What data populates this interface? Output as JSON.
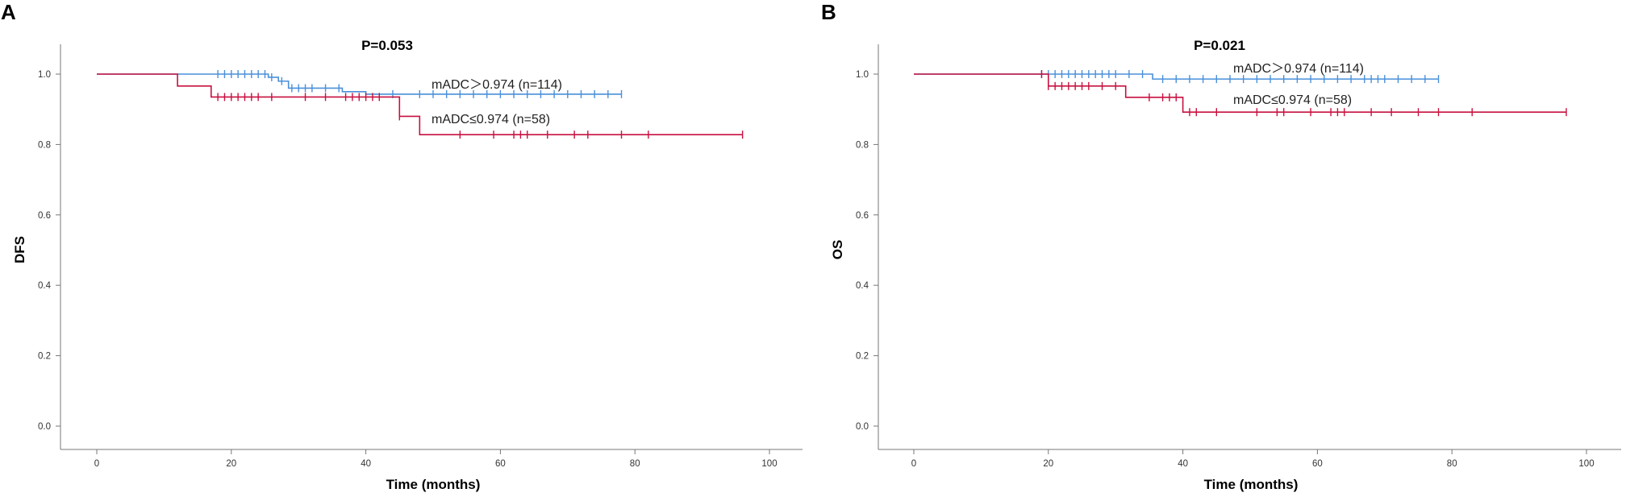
{
  "colors": {
    "high": "#4a90d9",
    "low": "#c8103f"
  },
  "chart_data": [
    {
      "type": "line",
      "panel": "A",
      "title": "P=0.053",
      "xlabel": "Time (months)",
      "ylabel": "DFS",
      "xlim": [
        0,
        100
      ],
      "ylim": [
        0,
        1
      ],
      "xticks": [
        "0",
        "20",
        "40",
        "60",
        "80",
        "100"
      ],
      "yticks": [
        "0.0",
        "0.2",
        "0.4",
        "0.6",
        "0.8",
        "1.0"
      ],
      "series": [
        {
          "name": "mADC＞0.974 (n=114)",
          "color": "#4a90d9",
          "steps": [
            [
              0,
              1.0
            ],
            [
              25.5,
              0.991
            ],
            [
              27,
              0.98
            ],
            [
              28.5,
              0.96
            ],
            [
              36.5,
              0.95
            ],
            [
              40,
              0.943
            ],
            [
              78,
              0.943
            ]
          ],
          "censors": [
            [
              18,
              1.0
            ],
            [
              19,
              1.0
            ],
            [
              20,
              1.0
            ],
            [
              21,
              1.0
            ],
            [
              22,
              1.0
            ],
            [
              23,
              1.0
            ],
            [
              24,
              1.0
            ],
            [
              25,
              1.0
            ],
            [
              26,
              0.991
            ],
            [
              27.5,
              0.98
            ],
            [
              29,
              0.96
            ],
            [
              30,
              0.96
            ],
            [
              31,
              0.96
            ],
            [
              32,
              0.96
            ],
            [
              34,
              0.96
            ],
            [
              36,
              0.96
            ],
            [
              44,
              0.943
            ],
            [
              48,
              0.943
            ],
            [
              50,
              0.943
            ],
            [
              52,
              0.943
            ],
            [
              54,
              0.943
            ],
            [
              56,
              0.943
            ],
            [
              58,
              0.943
            ],
            [
              60,
              0.943
            ],
            [
              62,
              0.943
            ],
            [
              64,
              0.943
            ],
            [
              66,
              0.943
            ],
            [
              68,
              0.943
            ],
            [
              70,
              0.943
            ],
            [
              72,
              0.943
            ],
            [
              74,
              0.943
            ],
            [
              76,
              0.943
            ],
            [
              78,
              0.943
            ]
          ]
        },
        {
          "name": "mADC≤0.974 (n=58)",
          "color": "#c8103f",
          "steps": [
            [
              0,
              1.0
            ],
            [
              12,
              0.966
            ],
            [
              17,
              0.935
            ],
            [
              45,
              0.88
            ],
            [
              48,
              0.828
            ],
            [
              96,
              0.828
            ]
          ],
          "censors": [
            [
              18,
              0.935
            ],
            [
              19,
              0.935
            ],
            [
              20,
              0.935
            ],
            [
              21,
              0.935
            ],
            [
              22,
              0.935
            ],
            [
              23,
              0.935
            ],
            [
              24,
              0.935
            ],
            [
              26,
              0.935
            ],
            [
              31,
              0.935
            ],
            [
              34,
              0.935
            ],
            [
              37,
              0.935
            ],
            [
              38,
              0.935
            ],
            [
              39,
              0.935
            ],
            [
              40,
              0.935
            ],
            [
              41,
              0.935
            ],
            [
              42,
              0.935
            ],
            [
              45,
              0.88
            ],
            [
              54,
              0.828
            ],
            [
              59,
              0.828
            ],
            [
              62,
              0.828
            ],
            [
              63,
              0.828
            ],
            [
              64,
              0.828
            ],
            [
              67,
              0.828
            ],
            [
              71,
              0.828
            ],
            [
              73,
              0.828
            ],
            [
              78,
              0.828
            ],
            [
              82,
              0.828
            ],
            [
              96,
              0.828
            ]
          ]
        }
      ]
    },
    {
      "type": "line",
      "panel": "B",
      "title": "P=0.021",
      "xlabel": "Time (months)",
      "ylabel": "OS",
      "xlim": [
        0,
        100
      ],
      "ylim": [
        0,
        1
      ],
      "xticks": [
        "0",
        "20",
        "40",
        "60",
        "80",
        "100"
      ],
      "yticks": [
        "0.0",
        "0.2",
        "0.4",
        "0.6",
        "0.8",
        "1.0"
      ],
      "series": [
        {
          "name": "mADC＞0.974 (n=114)",
          "color": "#4a90d9",
          "steps": [
            [
              0,
              1.0
            ],
            [
              35.5,
              0.986
            ],
            [
              78,
              0.986
            ]
          ],
          "censors": [
            [
              19,
              1.0
            ],
            [
              20,
              1.0
            ],
            [
              21,
              1.0
            ],
            [
              22,
              1.0
            ],
            [
              23,
              1.0
            ],
            [
              24,
              1.0
            ],
            [
              25,
              1.0
            ],
            [
              26,
              1.0
            ],
            [
              27,
              1.0
            ],
            [
              28,
              1.0
            ],
            [
              29,
              1.0
            ],
            [
              30,
              1.0
            ],
            [
              32,
              1.0
            ],
            [
              34,
              1.0
            ],
            [
              37,
              0.986
            ],
            [
              39,
              0.986
            ],
            [
              41,
              0.986
            ],
            [
              43,
              0.986
            ],
            [
              45,
              0.986
            ],
            [
              47,
              0.986
            ],
            [
              49,
              0.986
            ],
            [
              51,
              0.986
            ],
            [
              53,
              0.986
            ],
            [
              55,
              0.986
            ],
            [
              57,
              0.986
            ],
            [
              59,
              0.986
            ],
            [
              61,
              0.986
            ],
            [
              63,
              0.986
            ],
            [
              65,
              0.986
            ],
            [
              67,
              0.986
            ],
            [
              68,
              0.986
            ],
            [
              69,
              0.986
            ],
            [
              70,
              0.986
            ],
            [
              72,
              0.986
            ],
            [
              74,
              0.986
            ],
            [
              76,
              0.986
            ],
            [
              78,
              0.986
            ]
          ]
        },
        {
          "name": "mADC≤0.974 (n=58)",
          "color": "#c8103f",
          "steps": [
            [
              0,
              1.0
            ],
            [
              20,
              0.966
            ],
            [
              31.5,
              0.934
            ],
            [
              40,
              0.892
            ],
            [
              97,
              0.892
            ]
          ],
          "censors": [
            [
              19,
              1.0
            ],
            [
              20,
              0.966
            ],
            [
              21,
              0.966
            ],
            [
              22,
              0.966
            ],
            [
              23,
              0.966
            ],
            [
              24,
              0.966
            ],
            [
              25,
              0.966
            ],
            [
              26,
              0.966
            ],
            [
              28,
              0.966
            ],
            [
              30,
              0.966
            ],
            [
              35,
              0.934
            ],
            [
              37,
              0.934
            ],
            [
              38,
              0.934
            ],
            [
              39,
              0.934
            ],
            [
              41,
              0.892
            ],
            [
              42,
              0.892
            ],
            [
              45,
              0.892
            ],
            [
              51,
              0.892
            ],
            [
              54,
              0.892
            ],
            [
              55,
              0.892
            ],
            [
              59,
              0.892
            ],
            [
              62,
              0.892
            ],
            [
              63,
              0.892
            ],
            [
              64,
              0.892
            ],
            [
              68,
              0.892
            ],
            [
              71,
              0.892
            ],
            [
              75,
              0.892
            ],
            [
              78,
              0.892
            ],
            [
              83,
              0.892
            ],
            [
              97,
              0.892
            ]
          ]
        }
      ]
    }
  ]
}
